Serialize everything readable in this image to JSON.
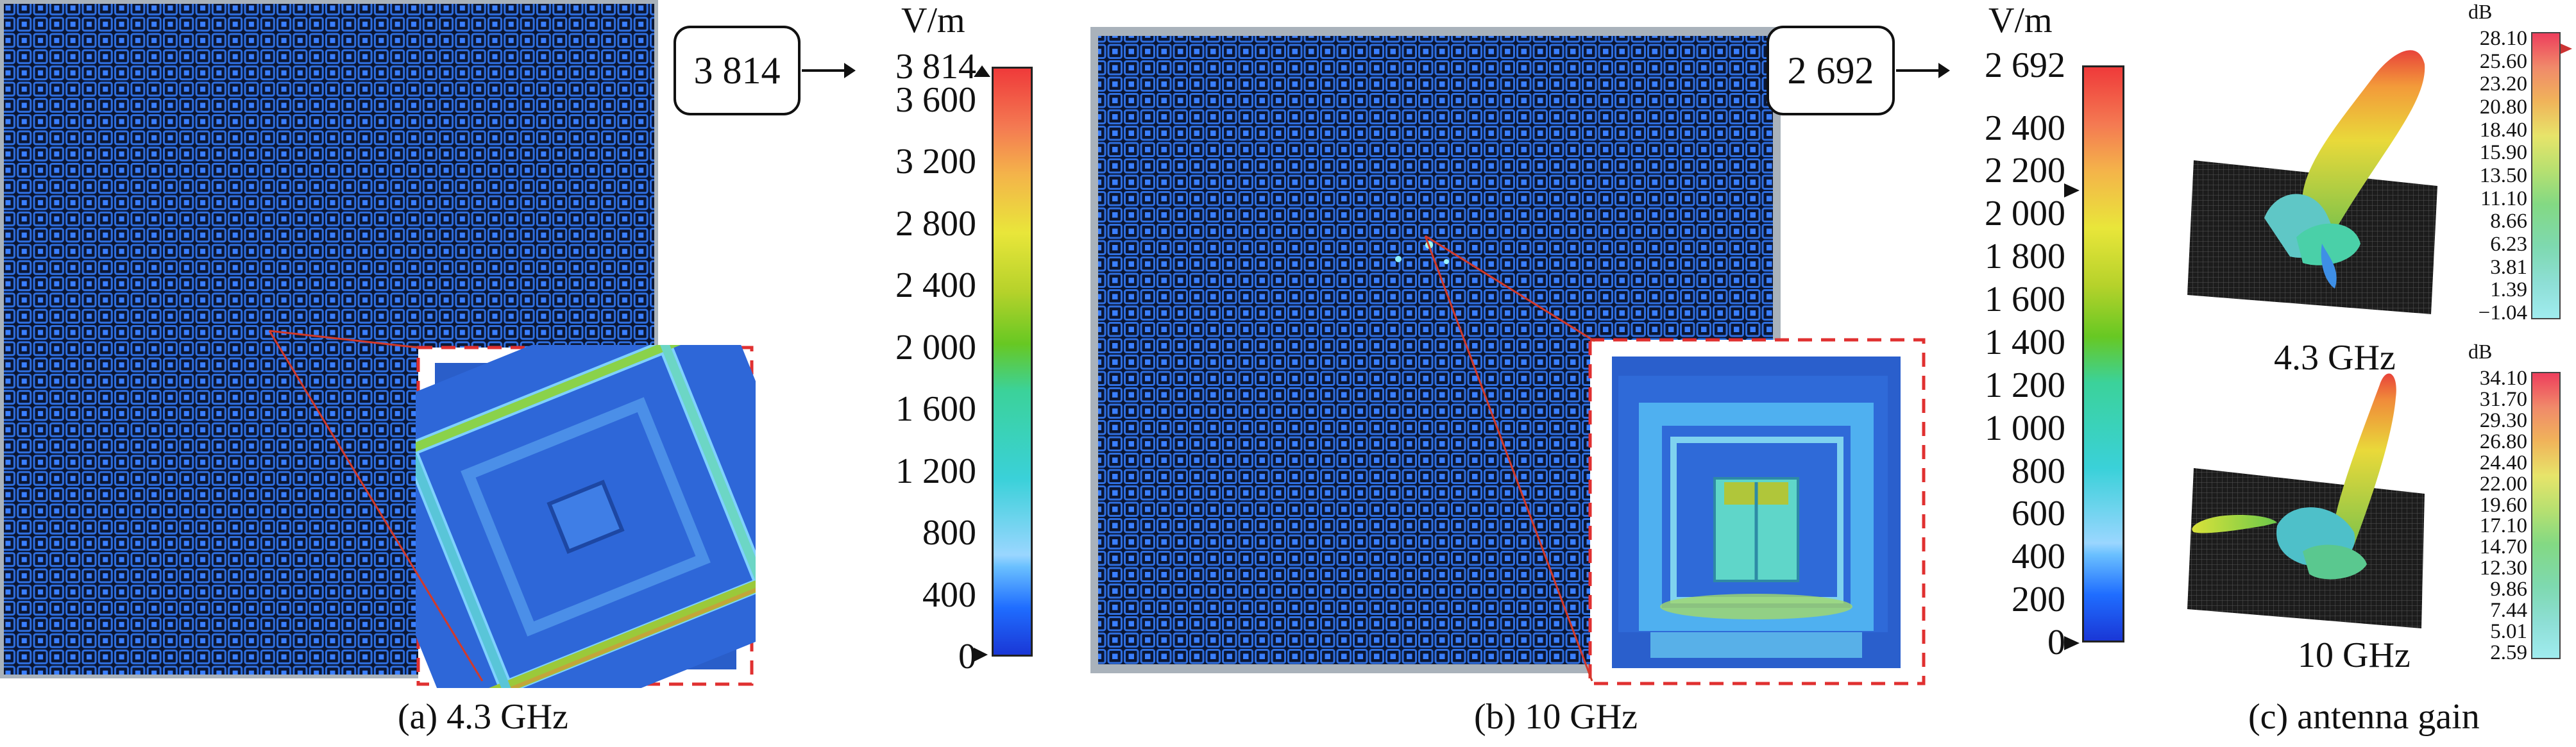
{
  "panel_a": {
    "caption": "(a) 4.3 GHz",
    "max_box": "3 814",
    "unit": "V/m",
    "colorbar_ticks": [
      "3 814",
      "3 600",
      "3 200",
      "2 800",
      "2 400",
      "2 000",
      "1 600",
      "1 200",
      "800",
      "400",
      "0"
    ],
    "colorbar_values": [
      3814,
      3600,
      3200,
      2800,
      2400,
      2000,
      1600,
      1200,
      800,
      400,
      0
    ],
    "colorbar_max": 3814
  },
  "panel_b": {
    "caption": "(b) 10 GHz",
    "max_box": "2 692",
    "unit": "V/m",
    "colorbar_ticks": [
      "2 692",
      "2 400",
      "2 200",
      "2 000",
      "1 800",
      "1 600",
      "1 400",
      "1 200",
      "1 000",
      "800",
      "600",
      "400",
      "200",
      "0"
    ],
    "colorbar_values": [
      2692,
      2400,
      2200,
      2000,
      1800,
      1600,
      1400,
      1200,
      1000,
      800,
      600,
      400,
      200,
      0
    ],
    "colorbar_max": 2692
  },
  "panel_c": {
    "caption": "(c) antenna gain",
    "top": {
      "freq": "4.3 GHz",
      "unit": "dB",
      "ticks": [
        "28.10",
        "25.60",
        "23.20",
        "20.80",
        "18.40",
        "15.90",
        "13.50",
        "11.10",
        "8.66",
        "6.23",
        "3.81",
        "1.39",
        "−1.04"
      ]
    },
    "bottom": {
      "freq": "10 GHz",
      "unit": "dB",
      "ticks": [
        "34.10",
        "31.70",
        "29.30",
        "26.80",
        "24.40",
        "22.00",
        "19.60",
        "17.10",
        "14.70",
        "12.30",
        "9.86",
        "7.44",
        "5.01",
        "2.59"
      ]
    }
  },
  "colors": {
    "field_dark": "#0a1a3a",
    "cell_blue": "#1e63d6",
    "zoom_border": "#e03030",
    "pointer_line": "#d23a2a"
  }
}
